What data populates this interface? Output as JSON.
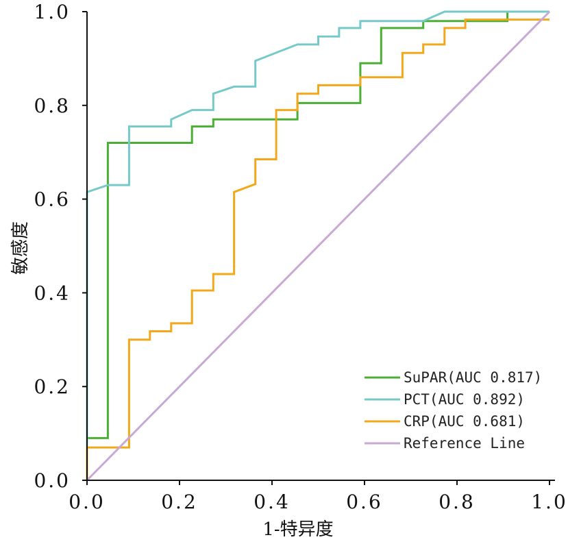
{
  "chart_data": {
    "type": "line",
    "title": "",
    "xlabel": "1-特异度",
    "ylabel": "敏感度",
    "xlim": [
      0,
      1
    ],
    "ylim": [
      0,
      1
    ],
    "x_ticks": [
      "0.0",
      "0.2",
      "0.4",
      "0.6",
      "0.8",
      "1.0"
    ],
    "y_ticks": [
      "0.0",
      "0.2",
      "0.4",
      "0.6",
      "0.8",
      "1.0"
    ],
    "legend_position": "bottom-right",
    "series": [
      {
        "name": "SuPAR(AUC 0.817)",
        "color": "#4caf35",
        "points": [
          [
            0.0,
            0.0
          ],
          [
            0.0,
            0.09
          ],
          [
            0.045,
            0.09
          ],
          [
            0.045,
            0.72
          ],
          [
            0.227,
            0.72
          ],
          [
            0.227,
            0.755
          ],
          [
            0.273,
            0.755
          ],
          [
            0.273,
            0.77
          ],
          [
            0.455,
            0.77
          ],
          [
            0.455,
            0.805
          ],
          [
            0.591,
            0.805
          ],
          [
            0.591,
            0.89
          ],
          [
            0.636,
            0.89
          ],
          [
            0.636,
            0.965
          ],
          [
            0.727,
            0.965
          ],
          [
            0.727,
            0.98
          ],
          [
            0.909,
            0.98
          ],
          [
            0.909,
            1.0
          ],
          [
            1.0,
            1.0
          ]
        ]
      },
      {
        "name": "PCT(AUC 0.892)",
        "color": "#76c9c9",
        "points": [
          [
            0.0,
            0.0
          ],
          [
            0.0,
            0.615
          ],
          [
            0.045,
            0.63
          ],
          [
            0.091,
            0.63
          ],
          [
            0.091,
            0.755
          ],
          [
            0.182,
            0.755
          ],
          [
            0.182,
            0.77
          ],
          [
            0.227,
            0.79
          ],
          [
            0.273,
            0.79
          ],
          [
            0.273,
            0.825
          ],
          [
            0.318,
            0.84
          ],
          [
            0.364,
            0.84
          ],
          [
            0.364,
            0.895
          ],
          [
            0.455,
            0.93
          ],
          [
            0.5,
            0.93
          ],
          [
            0.5,
            0.947
          ],
          [
            0.545,
            0.947
          ],
          [
            0.545,
            0.965
          ],
          [
            0.591,
            0.965
          ],
          [
            0.591,
            0.98
          ],
          [
            0.727,
            0.98
          ],
          [
            0.773,
            1.0
          ],
          [
            1.0,
            1.0
          ]
        ]
      },
      {
        "name": "CRP(AUC 0.681)",
        "color": "#f3a81c",
        "points": [
          [
            0.0,
            0.0
          ],
          [
            0.0,
            0.07
          ],
          [
            0.091,
            0.07
          ],
          [
            0.091,
            0.3
          ],
          [
            0.136,
            0.3
          ],
          [
            0.136,
            0.318
          ],
          [
            0.182,
            0.318
          ],
          [
            0.182,
            0.335
          ],
          [
            0.227,
            0.335
          ],
          [
            0.227,
            0.405
          ],
          [
            0.273,
            0.405
          ],
          [
            0.273,
            0.44
          ],
          [
            0.318,
            0.44
          ],
          [
            0.318,
            0.615
          ],
          [
            0.364,
            0.632
          ],
          [
            0.364,
            0.685
          ],
          [
            0.409,
            0.685
          ],
          [
            0.409,
            0.79
          ],
          [
            0.455,
            0.79
          ],
          [
            0.455,
            0.825
          ],
          [
            0.5,
            0.825
          ],
          [
            0.5,
            0.843
          ],
          [
            0.591,
            0.843
          ],
          [
            0.591,
            0.86
          ],
          [
            0.682,
            0.86
          ],
          [
            0.682,
            0.912
          ],
          [
            0.727,
            0.912
          ],
          [
            0.727,
            0.93
          ],
          [
            0.773,
            0.93
          ],
          [
            0.773,
            0.965
          ],
          [
            0.818,
            0.965
          ],
          [
            0.818,
            0.983
          ],
          [
            1.0,
            0.983
          ]
        ]
      },
      {
        "name": "Reference Line",
        "color": "#c7a9d3",
        "points": [
          [
            0.0,
            0.0
          ],
          [
            1.0,
            1.0
          ]
        ]
      }
    ]
  }
}
